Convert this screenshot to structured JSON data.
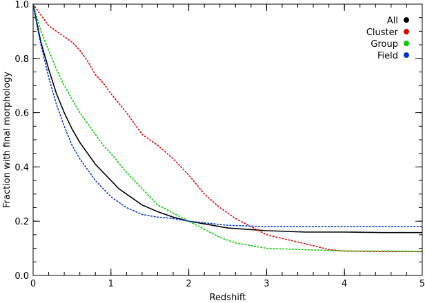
{
  "chart_data": {
    "type": "line",
    "title": "",
    "xlabel": "Redshift",
    "ylabel": "Fraction with final morphology",
    "xlim": [
      0,
      5
    ],
    "ylim": [
      0,
      1.0
    ],
    "x_ticks": [
      0,
      1,
      2,
      3,
      4,
      5
    ],
    "x_tick_labels": [
      "0",
      "1",
      "2",
      "3",
      "4",
      "5"
    ],
    "y_ticks": [
      0,
      0.2,
      0.4,
      0.6,
      0.8,
      1.0
    ],
    "y_tick_labels": [
      "0.0",
      "0.2",
      "0.4",
      "0.6",
      "0.8",
      "1.0"
    ],
    "grid": false,
    "legend_position": "top-right",
    "series": [
      {
        "name": "All",
        "color": "#000000",
        "style": "solid",
        "x": [
          0,
          0.05,
          0.1,
          0.2,
          0.3,
          0.4,
          0.5,
          0.6,
          0.7,
          0.8,
          0.9,
          1.0,
          1.1,
          1.2,
          1.4,
          1.6,
          1.8,
          2.0,
          2.2,
          2.5,
          3.0,
          3.5,
          4.0,
          4.5,
          5.0
        ],
        "y": [
          1.0,
          0.93,
          0.86,
          0.76,
          0.67,
          0.6,
          0.54,
          0.49,
          0.45,
          0.41,
          0.38,
          0.35,
          0.32,
          0.3,
          0.26,
          0.235,
          0.215,
          0.2,
          0.19,
          0.175,
          0.165,
          0.16,
          0.16,
          0.158,
          0.158
        ]
      },
      {
        "name": "Cluster",
        "color": "#dd0000",
        "style": "dotted",
        "x": [
          0,
          0.1,
          0.2,
          0.3,
          0.4,
          0.5,
          0.6,
          0.7,
          0.8,
          0.9,
          1.0,
          1.2,
          1.4,
          1.6,
          1.8,
          2.0,
          2.2,
          2.4,
          2.6,
          2.8,
          3.0,
          3.3,
          3.6,
          3.8,
          4.0,
          4.5,
          5.0
        ],
        "y": [
          1.0,
          0.96,
          0.92,
          0.9,
          0.88,
          0.86,
          0.83,
          0.79,
          0.74,
          0.71,
          0.67,
          0.6,
          0.52,
          0.48,
          0.43,
          0.37,
          0.3,
          0.25,
          0.21,
          0.18,
          0.15,
          0.13,
          0.11,
          0.095,
          0.09,
          0.088,
          0.088
        ]
      },
      {
        "name": "Group",
        "color": "#00cc00",
        "style": "dotted",
        "x": [
          0,
          0.1,
          0.2,
          0.3,
          0.4,
          0.5,
          0.6,
          0.7,
          0.8,
          0.9,
          1.0,
          1.2,
          1.4,
          1.6,
          1.8,
          2.0,
          2.2,
          2.4,
          2.6,
          2.8,
          3.0,
          3.5,
          4.0,
          4.5,
          5.0
        ],
        "y": [
          1.0,
          0.9,
          0.83,
          0.76,
          0.7,
          0.65,
          0.6,
          0.56,
          0.52,
          0.48,
          0.45,
          0.38,
          0.32,
          0.26,
          0.23,
          0.2,
          0.17,
          0.14,
          0.12,
          0.11,
          0.1,
          0.095,
          0.09,
          0.09,
          0.088
        ]
      },
      {
        "name": "Field",
        "color": "#0033cc",
        "style": "dotted",
        "x": [
          0,
          0.05,
          0.1,
          0.2,
          0.3,
          0.4,
          0.5,
          0.6,
          0.7,
          0.8,
          0.9,
          1.0,
          1.1,
          1.2,
          1.4,
          1.6,
          1.8,
          2.0,
          2.5,
          3.0,
          3.5,
          4.0,
          4.5,
          5.0
        ],
        "y": [
          1.0,
          0.92,
          0.85,
          0.73,
          0.63,
          0.55,
          0.48,
          0.43,
          0.39,
          0.35,
          0.32,
          0.29,
          0.27,
          0.25,
          0.225,
          0.215,
          0.21,
          0.2,
          0.185,
          0.18,
          0.18,
          0.18,
          0.18,
          0.18
        ]
      }
    ]
  }
}
